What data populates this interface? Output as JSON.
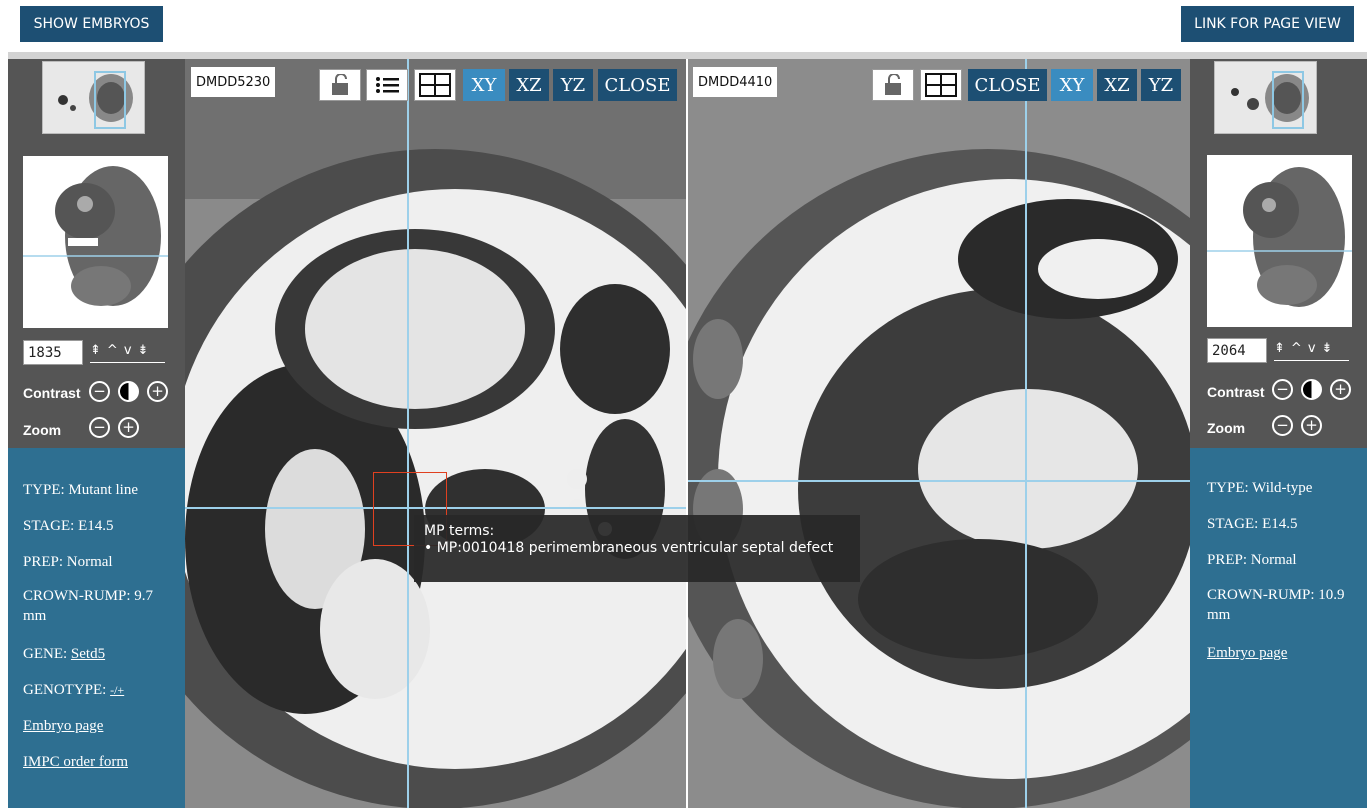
{
  "header": {
    "show_embryos_label": "SHOW EMBRYOS",
    "link_page_view_label": "LINK FOR PAGE VIEW"
  },
  "left": {
    "embryo_id": "DMDD5230",
    "slice_value": "1835",
    "contrast_label": "Contrast",
    "zoom_label": "Zoom",
    "toolbar": {
      "xy": "XY",
      "xz": "XZ",
      "yz": "YZ",
      "close": "CLOSE",
      "lock_icon": "lock-open-icon",
      "list_icon": "list-icon",
      "grid_icon": "grid-icon",
      "active_view": "XY"
    },
    "info": {
      "type_label": "TYPE:",
      "type_value": "Mutant line",
      "stage_label": "STAGE:",
      "stage_value": "E14.5",
      "prep_label": "PREP:",
      "prep_value": "Normal",
      "crown_rump_label": "CROWN-RUMP:",
      "crown_rump_value": "9.7 mm",
      "gene_label": "GENE:",
      "gene_value": "Setd5",
      "genotype_label": "GENOTYPE:",
      "genotype_value": "-/+",
      "embryo_page_link": "Embryo page",
      "impc_order_link": "IMPC order form"
    }
  },
  "right": {
    "embryo_id": "DMDD4410",
    "slice_value": "2064",
    "contrast_label": "Contrast",
    "zoom_label": "Zoom",
    "toolbar": {
      "xy": "XY",
      "xz": "XZ",
      "yz": "YZ",
      "close": "CLOSE",
      "lock_icon": "lock-open-icon",
      "grid_icon": "grid-icon",
      "active_view": "XY"
    },
    "info": {
      "type_label": "TYPE:",
      "type_value": "Wild-type",
      "stage_label": "STAGE:",
      "stage_value": "E14.5",
      "prep_label": "PREP:",
      "prep_value": "Normal",
      "crown_rump_label": "CROWN-RUMP:",
      "crown_rump_value": "10.9 mm",
      "embryo_page_link": "Embryo page"
    }
  },
  "tooltip": {
    "title": "MP terms:",
    "item": "• MP:0010418 perimembraneous ventricular septal defect"
  },
  "arrows": {
    "first": "⇞",
    "up": "^",
    "down": "v",
    "last": "⇟"
  },
  "colors": {
    "navy": "#1d4f73",
    "active_blue": "#3a8cc0",
    "info_blue": "#2e6f91",
    "sidebar_gray": "#555555",
    "crosshair": "#9dd0ea",
    "roi": "#e04020"
  }
}
